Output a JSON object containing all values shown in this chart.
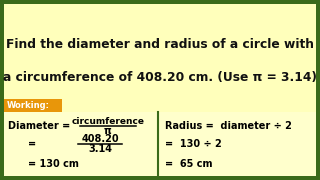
{
  "title_line1": "Find the diameter and radius of a circle with",
  "title_line2": "a circumference of 408.20 cm. (Use π = 3.14)",
  "working_label": "Working:",
  "title_bg": "#ffffbb",
  "working_label_bg": "#e8960a",
  "working_area_bg": "#ffffcc",
  "border_color": "#3a6b1a",
  "title_color": "#111111",
  "working_label_color": "#ffffff",
  "left_frac1_num": "circumference",
  "left_frac1_den": "π",
  "left_frac2_num": "408.20",
  "left_frac2_den": "3.14",
  "left_result": "= 130 cm",
  "right_line1": "Radius =  diameter ÷ 2",
  "right_line2": "=  130 ÷ 2",
  "right_line3": "=  65 cm"
}
